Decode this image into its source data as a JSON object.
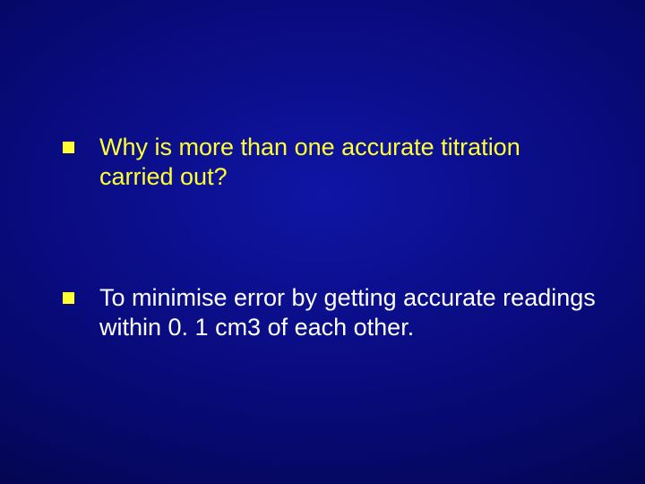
{
  "slide": {
    "background_gradient": {
      "type": "radial",
      "center_color": "#1015a5",
      "edge_color": "#010230"
    },
    "bullets": [
      {
        "marker_color": "#ffff33",
        "text_color": "#ffff33",
        "text": "Why is more than one accurate titration carried out?",
        "fontsize": 27
      },
      {
        "marker_color": "#ffff33",
        "text_color": "#ffffff",
        "text": " To minimise error by getting accurate readings within 0. 1 cm3 of each other.",
        "fontsize": 27
      }
    ]
  }
}
